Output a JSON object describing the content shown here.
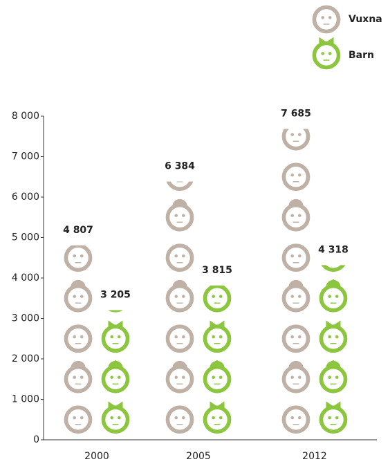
{
  "chart_data": {
    "type": "pictograph",
    "categories": [
      "2000",
      "2005",
      "2012"
    ],
    "series": [
      {
        "name": "Vuxna",
        "color": "#bfb1a5",
        "values": [
          4807,
          6384,
          7685
        ],
        "value_labels": [
          "4 807",
          "6 384",
          "7 685"
        ]
      },
      {
        "name": "Barn",
        "color": "#8cc63f",
        "values": [
          3205,
          3815,
          4318
        ],
        "value_labels": [
          "3 205",
          "3 815",
          "4 318"
        ]
      }
    ],
    "unit": 1000,
    "ylim": [
      0,
      8000
    ],
    "yticks": [
      {
        "value": 0,
        "label": "0"
      },
      {
        "value": 1000,
        "label": "1 000"
      },
      {
        "value": 2000,
        "label": "2 000"
      },
      {
        "value": 3000,
        "label": "3 000"
      },
      {
        "value": 4000,
        "label": "4 000"
      },
      {
        "value": 5000,
        "label": "5 000"
      },
      {
        "value": 6000,
        "label": "6 000"
      },
      {
        "value": 7000,
        "label": "7 000"
      },
      {
        "value": 8000,
        "label": "8 000"
      }
    ],
    "legend": "top-right"
  }
}
